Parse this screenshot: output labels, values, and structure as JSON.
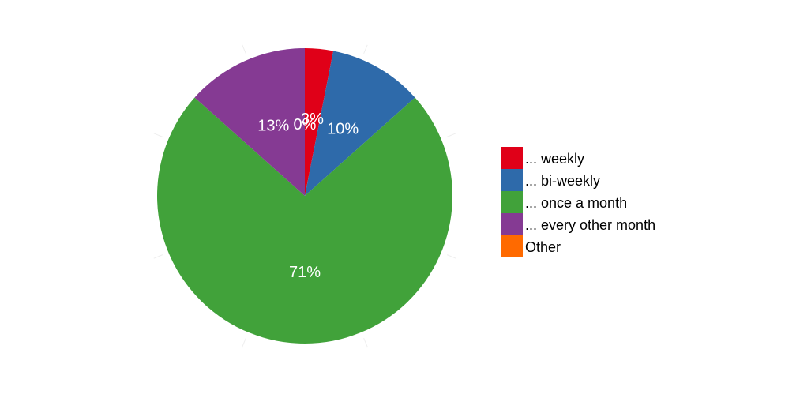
{
  "chart_data": {
    "type": "pie",
    "categories": [
      "... weekly",
      "... bi-weekly",
      "... once a month",
      "... every other month",
      "Other"
    ],
    "values": [
      3,
      10,
      71,
      13,
      0
    ],
    "labels": [
      "3%",
      "10%",
      "71%",
      "13%",
      "0%"
    ],
    "colors": [
      "#e00018",
      "#2e6aaa",
      "#41a23a",
      "#853a93",
      "#ff6a00"
    ],
    "legend_position": "right",
    "label_color": "#ffffff",
    "background": "#ffffff"
  }
}
